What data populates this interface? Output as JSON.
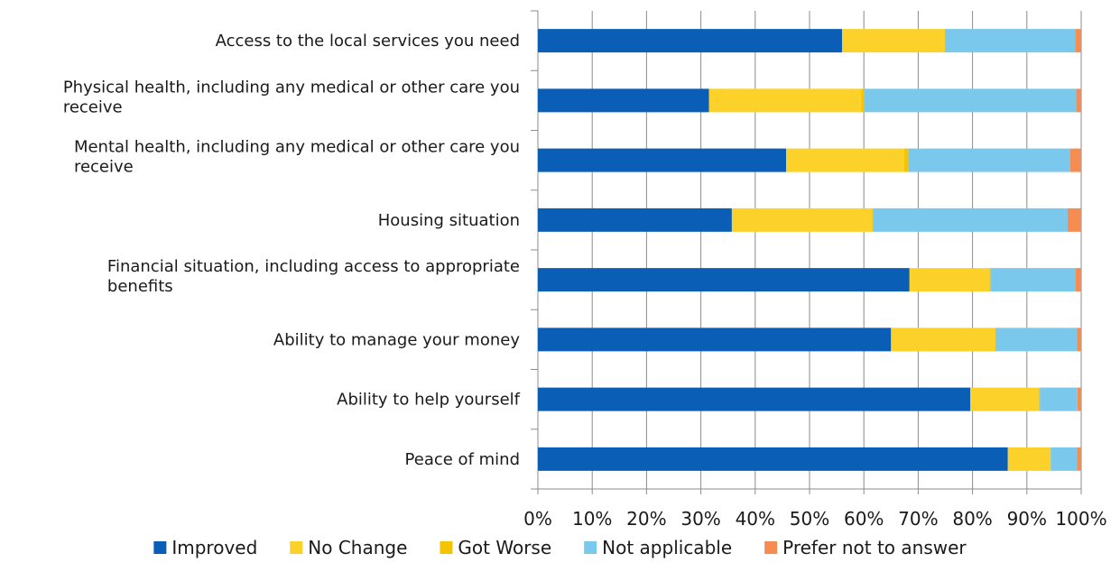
{
  "chart_data": {
    "type": "bar",
    "orientation": "horizontal",
    "stacked": "percent",
    "categories": [
      "Access to the local services you need",
      "Physical health, including any medical or other care you receive",
      "Mental health, including any medical or other care you receive",
      "Housing situation",
      "Financial situation, including access to appropriate benefits",
      "Ability to manage your money",
      "Ability to help yourself",
      "Peace of mind"
    ],
    "category_lines": [
      [
        "Access to the local services you need"
      ],
      [
        "Physical health, including any medical or other care you",
        "receive"
      ],
      [
        "Mental health, including any medical or other care you",
        "receive"
      ],
      [
        "Housing situation"
      ],
      [
        "Financial situation, including access to appropriate",
        "benefits"
      ],
      [
        "Ability to manage your money"
      ],
      [
        "Ability to help yourself"
      ],
      [
        "Peace of mind"
      ]
    ],
    "series": [
      {
        "name": "Improved",
        "color": "#0a5eb5",
        "values": [
          56.0,
          31.5,
          45.7,
          35.7,
          68.4,
          65.0,
          79.6,
          86.5
        ]
      },
      {
        "name": "No Change",
        "color": "#fcd12a",
        "values": [
          18.8,
          28.0,
          21.7,
          25.8,
          14.7,
          19.1,
          12.6,
          7.8
        ]
      },
      {
        "name": "Got Worse",
        "color": "#f5c400",
        "values": [
          0.2,
          0.6,
          0.8,
          0.2,
          0.3,
          0.2,
          0.2,
          0.1
        ]
      },
      {
        "name": "Not applicable",
        "color": "#7ac8ec",
        "values": [
          23.9,
          39.0,
          29.8,
          35.8,
          15.6,
          14.9,
          6.9,
          4.8
        ]
      },
      {
        "name": "Prefer not to answer",
        "color": "#f58d52",
        "values": [
          1.1,
          0.9,
          2.0,
          2.5,
          1.0,
          0.8,
          0.7,
          0.8
        ]
      }
    ],
    "x_ticks": [
      "0%",
      "10%",
      "20%",
      "30%",
      "40%",
      "50%",
      "60%",
      "70%",
      "80%",
      "90%",
      "100%"
    ],
    "xlim": [
      0,
      100
    ],
    "grid": true,
    "legend_position": "bottom"
  }
}
